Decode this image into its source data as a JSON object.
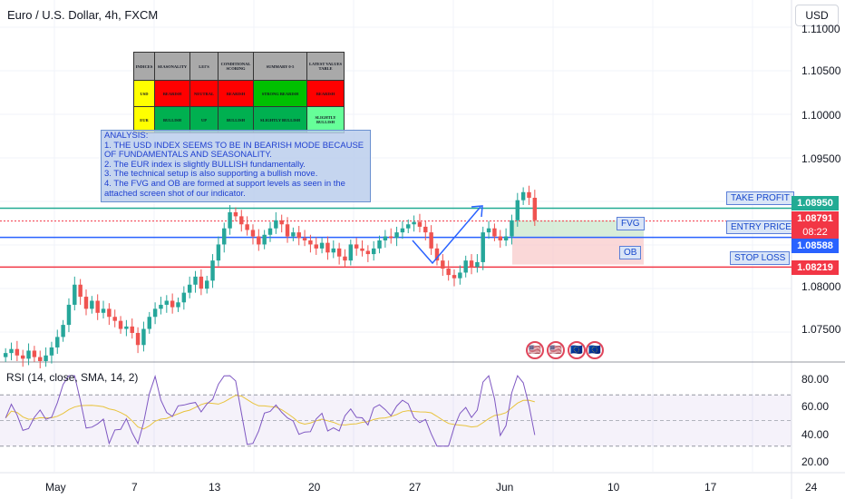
{
  "header": {
    "title": "Euro / U.S. Dollar, 4h, FXCM",
    "currency": "USD"
  },
  "annotations": {
    "take_profit": "TAKE PROFIT",
    "entry_price": "ENTRY PRICE",
    "stop_loss": "STOP LOSS",
    "fvg": "FVG",
    "ob": "OB"
  },
  "price_labels": {
    "take_profit": "1.08950",
    "current": "1.08791",
    "countdown": "08:22",
    "entry": "1.08588",
    "stop_loss": "1.08219"
  },
  "price_axis": [
    "1.11000",
    "1.10500",
    "1.10000",
    "1.09500",
    "1.08000",
    "1.07500"
  ],
  "rsi": {
    "label": "RSI (14, close, SMA, 14, 2)",
    "axis": [
      "80.00",
      "60.00",
      "40.00",
      "20.00"
    ]
  },
  "date_axis": [
    "May",
    "7",
    "13",
    "20",
    "27",
    "Jun",
    "10",
    "17",
    "24"
  ],
  "table": {
    "headers": [
      "INDICES",
      "SEASONALITY",
      "LEI'S",
      "CONDITIONAL SCORING",
      "SUMMARY 0-5",
      "LATEST VALUES TABLE"
    ],
    "rows": [
      [
        "USD",
        "BEARISH",
        "NEUTRAL",
        "BEARISH",
        "STRONG BEARISH",
        "BEARISH"
      ],
      [
        "EUR",
        "BULLISH",
        "UP",
        "BULLISH",
        "SLIGHTLY BULLISH",
        "SLIGHTLY BULLISH"
      ]
    ],
    "row_colors": [
      [
        "#ffff00",
        "#ff0000",
        "#ff0000",
        "#ff0000",
        "#00c000",
        "#ff0000"
      ],
      [
        "#ffff00",
        "#00b050",
        "#00b050",
        "#00b050",
        "#00b050",
        "#66ff99"
      ]
    ]
  },
  "analysis": {
    "lines": [
      "ANALYSIS:",
      "1. THE USD INDEX SEEMS TO BE IN BEARISH MODE BECAUSE OF FUNDAMENTALS AND SEASONALITY.",
      "2. The EUR index is slightly BULLISH fundamentally.",
      "3. The technical setup is also supporting a bullish move.",
      "4. The FVG and OB are formed at support levels as seen in the attached screen shot of our indicator."
    ]
  },
  "colors": {
    "up": "#26a69a",
    "down": "#ef5350",
    "take_profit": "#22ab94",
    "entry": "#2962ff",
    "stop": "#f23645",
    "rsi": "#7e57c2",
    "rsi_ma": "#e8c33d"
  },
  "chart_data": {
    "type": "candlestick",
    "price_range": [
      1.0705,
      1.112
    ],
    "levels": {
      "take_profit": 1.0895,
      "entry": 1.08588,
      "stop_loss": 1.08219
    },
    "closes": [
      1.0715,
      1.072,
      1.0712,
      1.0708,
      1.0718,
      1.071,
      1.0705,
      1.0712,
      1.0722,
      1.0735,
      1.075,
      1.0775,
      1.08,
      1.0785,
      1.077,
      1.078,
      1.0765,
      1.077,
      1.076,
      1.0755,
      1.0745,
      1.0748,
      1.074,
      1.0725,
      1.0745,
      1.076,
      1.077,
      1.0775,
      1.078,
      1.0772,
      1.0778,
      1.079,
      1.08,
      1.081,
      1.0795,
      1.0805,
      1.083,
      1.085,
      1.087,
      1.089,
      1.0885,
      1.0875,
      1.0868,
      1.086,
      1.085,
      1.0862,
      1.087,
      1.088,
      1.0875,
      1.086,
      1.0865,
      1.0858,
      1.0855,
      1.085,
      1.0845,
      1.0852,
      1.084,
      1.0845,
      1.0835,
      1.083,
      1.085,
      1.0845,
      1.0842,
      1.0838,
      1.0845,
      1.0855,
      1.086,
      1.0858,
      1.0865,
      1.087,
      1.0875,
      1.0878,
      1.0872,
      1.0865,
      1.0845,
      1.083,
      1.082,
      1.0812,
      1.0808,
      1.0815,
      1.083,
      1.0822,
      1.0828,
      1.0865,
      1.087,
      1.086,
      1.0855,
      1.086,
      1.088,
      1.0905,
      1.0915,
      1.0908,
      1.088
    ]
  }
}
